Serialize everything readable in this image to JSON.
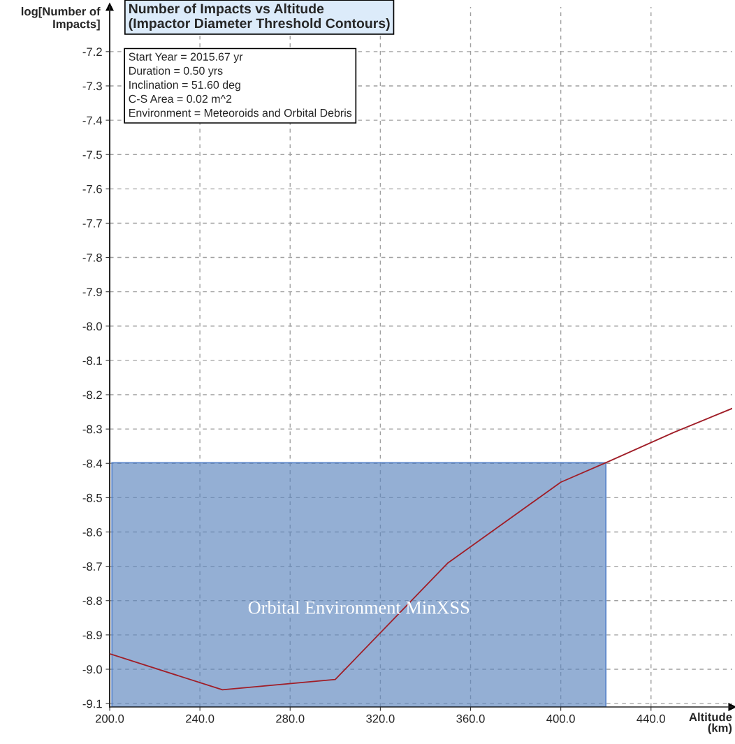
{
  "chart_data": {
    "type": "line",
    "title": "Number of Impacts vs Altitude (Impactor Diameter Threshold Contours)",
    "xlabel": "Altitude (km)",
    "ylabel": "log[Number of Impacts]",
    "annotations": [
      "Start Year = 2015.67 yr",
      "Duration = 0.50 yrs",
      "Inclination = 51.60 deg",
      "C-S Area = 0.02 m^2",
      "Environment = Meteoroids and Orbital Debris"
    ],
    "x": [
      200,
      250,
      300,
      350,
      400,
      421,
      450,
      476
    ],
    "series": [
      {
        "color": "#a01e28",
        "values": [
          -8.955,
          -9.06,
          -9.03,
          -8.69,
          -8.455,
          -8.395,
          -8.31,
          -8.24
        ]
      }
    ],
    "bands": [
      {
        "axis": "x",
        "from": 201,
        "to": 420,
        "label": "Orbital Environment MinXSS",
        "color": "#5b84bd"
      }
    ],
    "xlim": [
      200,
      476
    ],
    "ylim": [
      -9.11,
      -7.07
    ],
    "xticks": [
      {
        "value": 200,
        "label": "200.0"
      },
      {
        "value": 240,
        "label": "240.0"
      },
      {
        "value": 280,
        "label": "280.0"
      },
      {
        "value": 320,
        "label": "320.0"
      },
      {
        "value": 360,
        "label": "360.0"
      },
      {
        "value": 400,
        "label": "400.0"
      },
      {
        "value": 440,
        "label": "440.0"
      }
    ],
    "yticks": [
      {
        "value": -9.1,
        "label": "-9.1"
      },
      {
        "value": -9.0,
        "label": "-9.0"
      },
      {
        "value": -8.9,
        "label": "-8.9"
      },
      {
        "value": -8.8,
        "label": "-8.8"
      },
      {
        "value": -8.7,
        "label": "-8.7"
      },
      {
        "value": -8.6,
        "label": "-8.6"
      },
      {
        "value": -8.5,
        "label": "-8.5"
      },
      {
        "value": -8.4,
        "label": "-8.4"
      },
      {
        "value": -8.3,
        "label": "-8.3"
      },
      {
        "value": -8.2,
        "label": "-8.2"
      },
      {
        "value": -8.1,
        "label": "-8.1"
      },
      {
        "value": -8.0,
        "label": "-8.0"
      },
      {
        "value": -7.9,
        "label": "-7.9"
      },
      {
        "value": -7.8,
        "label": "-7.8"
      },
      {
        "value": -7.7,
        "label": "-7.7"
      },
      {
        "value": -7.6,
        "label": "-7.6"
      },
      {
        "value": -7.5,
        "label": "-7.5"
      },
      {
        "value": -7.4,
        "label": "-7.4"
      },
      {
        "value": -7.3,
        "label": "-7.3"
      },
      {
        "value": -7.2,
        "label": "-7.2"
      }
    ],
    "grid": true,
    "marker": "none",
    "line_style": "solid",
    "legend": false
  }
}
